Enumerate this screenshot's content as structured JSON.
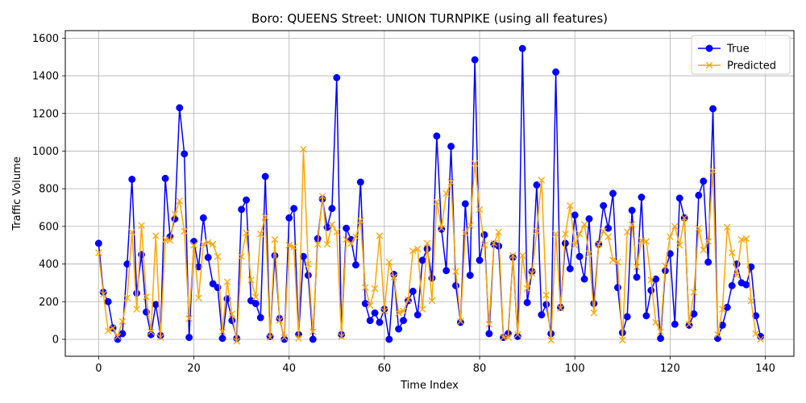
{
  "chart_data": {
    "type": "line",
    "title": "Boro: QUEENS Street: UNION TURNPIKE (using all features)",
    "xlabel": "Time Index",
    "ylabel": "Traffic Volume",
    "xlim": [
      -7,
      146
    ],
    "ylim": [
      -90,
      1640
    ],
    "xticks": [
      0,
      20,
      40,
      60,
      80,
      100,
      120,
      140
    ],
    "yticks": [
      0,
      200,
      400,
      600,
      800,
      1000,
      1200,
      1400,
      1600
    ],
    "grid": true,
    "legend_position": "upper right",
    "series": [
      {
        "name": "True",
        "color": "#0000ff",
        "marker": "circle",
        "values": [
          510,
          250,
          200,
          60,
          0,
          30,
          400,
          850,
          245,
          450,
          145,
          25,
          185,
          20,
          855,
          545,
          640,
          1230,
          985,
          10,
          520,
          385,
          645,
          435,
          295,
          275,
          5,
          215,
          100,
          5,
          690,
          740,
          205,
          190,
          115,
          865,
          15,
          445,
          110,
          0,
          645,
          695,
          25,
          440,
          340,
          0,
          535,
          745,
          595,
          695,
          1390,
          25,
          590,
          530,
          395,
          835,
          190,
          100,
          140,
          90,
          160,
          0,
          345,
          55,
          100,
          205,
          255,
          130,
          420,
          480,
          325,
          1080,
          585,
          365,
          1025,
          285,
          90,
          720,
          340,
          1485,
          420,
          555,
          30,
          505,
          495,
          10,
          30,
          435,
          15,
          1545,
          195,
          360,
          820,
          130,
          185,
          30,
          1420,
          170,
          510,
          375,
          660,
          440,
          320,
          640,
          190,
          505,
          710,
          590,
          775,
          275,
          35,
          120,
          685,
          330,
          755,
          125,
          260,
          320,
          5,
          365,
          455,
          80,
          750,
          645,
          75,
          135,
          765,
          840,
          410,
          1225,
          5,
          75,
          170,
          285,
          400,
          300,
          290,
          385,
          125,
          15
        ]
      },
      {
        "name": "Predicted",
        "color": "#ffa500",
        "marker": "x",
        "values": [
          460,
          240,
          45,
          60,
          15,
          95,
          220,
          570,
          160,
          605,
          225,
          40,
          550,
          10,
          530,
          525,
          665,
          735,
          575,
          110,
          500,
          220,
          505,
          515,
          505,
          440,
          40,
          305,
          135,
          -10,
          440,
          565,
          315,
          225,
          560,
          650,
          10,
          530,
          100,
          10,
          500,
          490,
          5,
          1010,
          400,
          40,
          505,
          760,
          505,
          610,
          570,
          15,
          530,
          510,
          545,
          630,
          275,
          180,
          270,
          550,
          150,
          410,
          330,
          140,
          150,
          210,
          470,
          480,
          160,
          510,
          205,
          730,
          590,
          775,
          835,
          360,
          95,
          565,
          605,
          935,
          690,
          500,
          80,
          510,
          570,
          10,
          10,
          445,
          25,
          445,
          270,
          350,
          575,
          845,
          235,
          -5,
          560,
          165,
          560,
          710,
          500,
          560,
          610,
          455,
          140,
          505,
          575,
          545,
          420,
          410,
          -5,
          570,
          610,
          385,
          525,
          520,
          315,
          90,
          40,
          390,
          545,
          600,
          500,
          645,
          80,
          250,
          590,
          475,
          520,
          895,
          25,
          160,
          595,
          460,
          340,
          530,
          535,
          205,
          30,
          0
        ]
      }
    ]
  }
}
